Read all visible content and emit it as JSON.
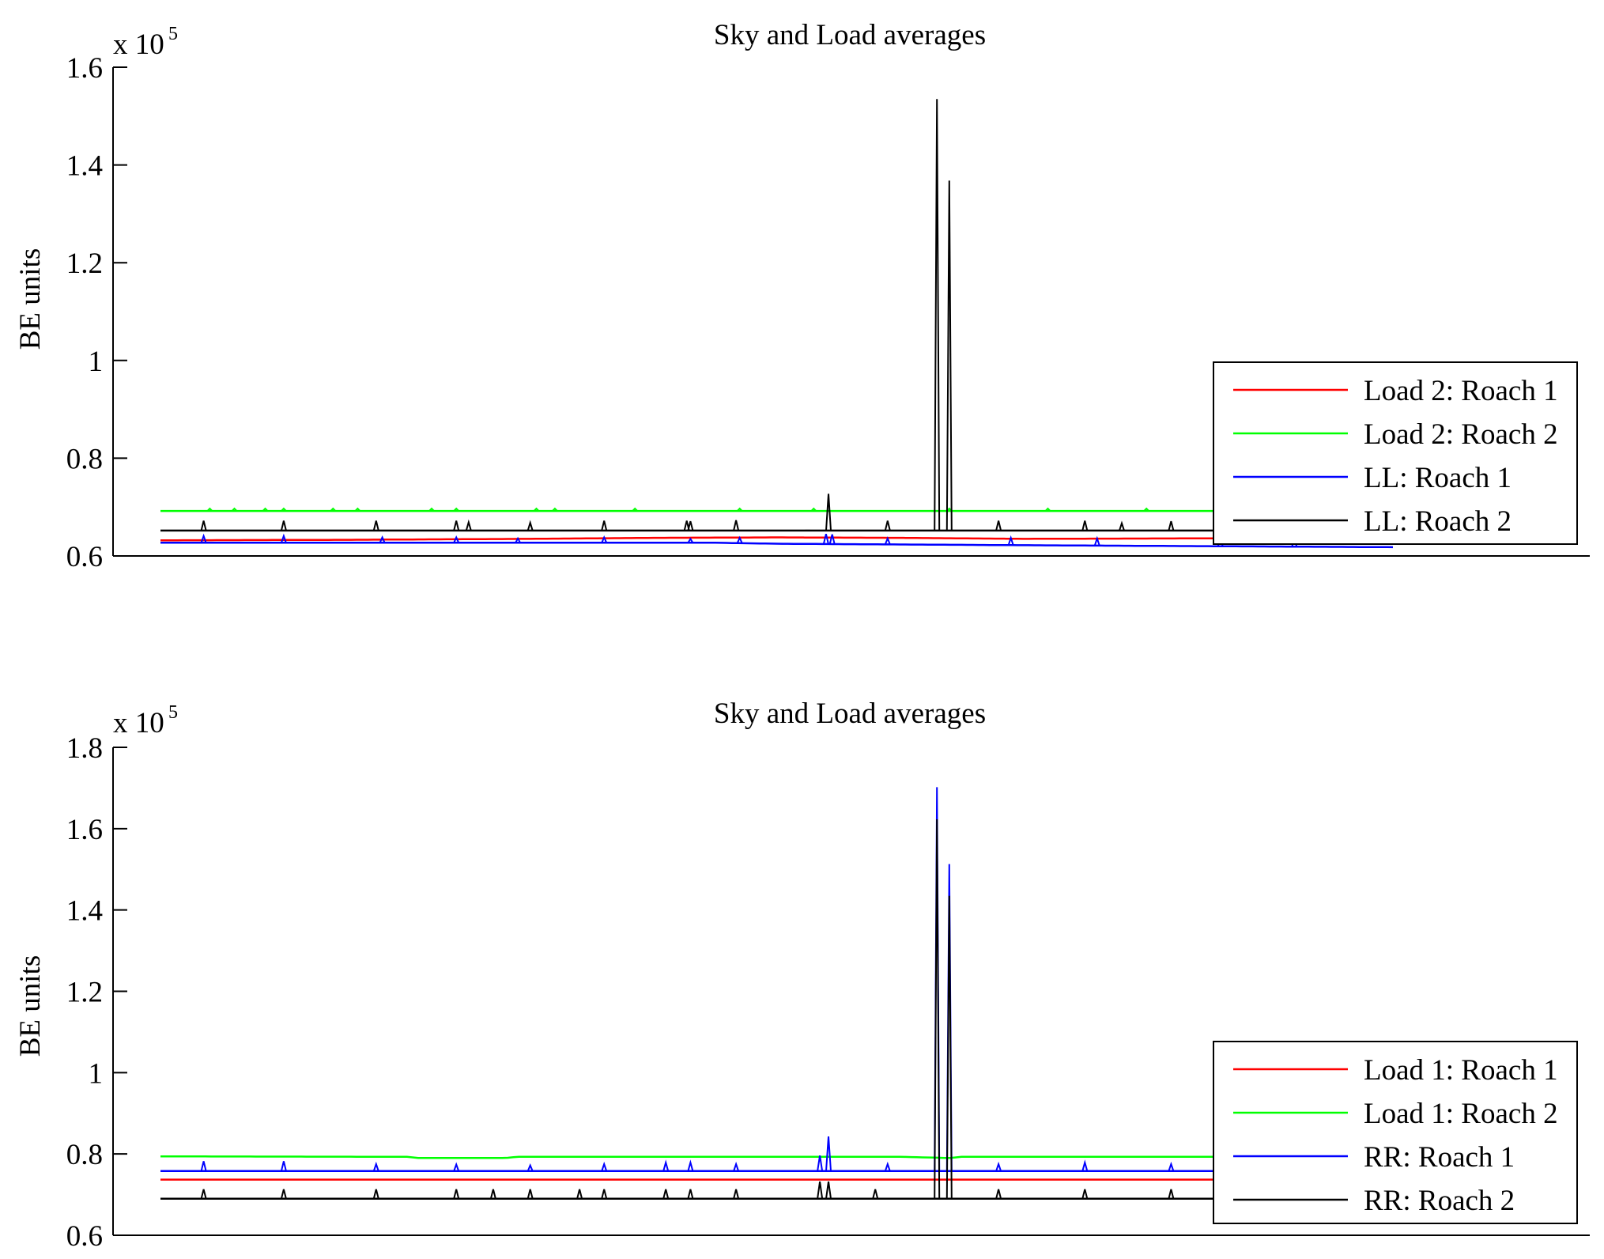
{
  "chart_data": [
    {
      "type": "line",
      "title": "Sky and Load averages",
      "xlabel": "",
      "ylabel": "BE units",
      "yscale_label": "x 10",
      "yscale_exponent": "5",
      "ylim": [
        0.6,
        1.6
      ],
      "yticks": [
        "0.6",
        "0.8",
        "1",
        "1.2",
        "1.4",
        "1.6"
      ],
      "x_range": [
        0,
        1000
      ],
      "legend_position": "right",
      "series": [
        {
          "name": "Load 2: Roach 1",
          "color": "#ff0000",
          "base": 0.635,
          "points": [
            [
              0,
              0.632
            ],
            [
              150,
              0.633
            ],
            [
              300,
              0.635
            ],
            [
              400,
              0.637
            ],
            [
              500,
              0.638
            ],
            [
              600,
              0.637
            ],
            [
              700,
              0.635
            ],
            [
              850,
              0.636
            ],
            [
              1000,
              0.632
            ]
          ],
          "spikes": []
        },
        {
          "name": "Load 2: Roach 2",
          "color": "#00ff00",
          "base": 0.692,
          "points": [
            [
              0,
              0.692
            ],
            [
              1000,
              0.692
            ]
          ],
          "spikes": [
            [
              40,
              0.697
            ],
            [
              60,
              0.697
            ],
            [
              85,
              0.697
            ],
            [
              100,
              0.697
            ],
            [
              140,
              0.697
            ],
            [
              160,
              0.697
            ],
            [
              220,
              0.697
            ],
            [
              240,
              0.697
            ],
            [
              305,
              0.697
            ],
            [
              320,
              0.697
            ],
            [
              385,
              0.697
            ],
            [
              470,
              0.697
            ],
            [
              530,
              0.697
            ],
            [
              640,
              0.697
            ],
            [
              720,
              0.697
            ],
            [
              800,
              0.697
            ],
            [
              900,
              0.697
            ],
            [
              960,
              0.697
            ]
          ]
        },
        {
          "name": "LL: Roach 1",
          "color": "#0000ff",
          "base": 0.627,
          "points": [
            [
              0,
              0.627
            ],
            [
              450,
              0.627
            ],
            [
              500,
              0.625
            ],
            [
              700,
              0.622
            ],
            [
              1000,
              0.618
            ]
          ],
          "spikes": [
            [
              35,
              0.641
            ],
            [
              100,
              0.641
            ],
            [
              180,
              0.638
            ],
            [
              240,
              0.638
            ],
            [
              290,
              0.636
            ],
            [
              360,
              0.638
            ],
            [
              430,
              0.635
            ],
            [
              470,
              0.637
            ],
            [
              540,
              0.645
            ],
            [
              545,
              0.644
            ],
            [
              590,
              0.636
            ],
            [
              690,
              0.637
            ],
            [
              760,
              0.636
            ],
            [
              860,
              0.637
            ],
            [
              920,
              0.635
            ]
          ]
        },
        {
          "name": "LL: Roach 2",
          "color": "#000000",
          "base": 0.652,
          "points": [
            [
              0,
              0.652
            ],
            [
              1000,
              0.652
            ]
          ],
          "spikes": [
            [
              35,
              0.672
            ],
            [
              100,
              0.672
            ],
            [
              175,
              0.672
            ],
            [
              240,
              0.672
            ],
            [
              250,
              0.669
            ],
            [
              300,
              0.668
            ],
            [
              360,
              0.672
            ],
            [
              427,
              0.672
            ],
            [
              430,
              0.671
            ],
            [
              467,
              0.673
            ],
            [
              542,
              0.727
            ],
            [
              525,
              0.652
            ],
            [
              590,
              0.672
            ],
            [
              630,
              1.535
            ],
            [
              640,
              1.368
            ],
            [
              680,
              0.672
            ],
            [
              750,
              0.672
            ],
            [
              780,
              0.667
            ],
            [
              820,
              0.671
            ],
            [
              870,
              0.667
            ],
            [
              925,
              0.673
            ]
          ]
        }
      ]
    },
    {
      "type": "line",
      "title": "Sky and Load averages",
      "xlabel": "",
      "ylabel": "BE units",
      "yscale_label": "x 10",
      "yscale_exponent": "5",
      "ylim": [
        0.6,
        1.8
      ],
      "yticks": [
        "0.6",
        "0.8",
        "1",
        "1.2",
        "1.4",
        "1.6",
        "1.8"
      ],
      "x_range": [
        0,
        1000
      ],
      "legend_position": "right",
      "series": [
        {
          "name": "Load 1: Roach 1",
          "color": "#ff0000",
          "base": 0.737,
          "points": [
            [
              0,
              0.737
            ],
            [
              1000,
              0.737
            ]
          ],
          "spikes": []
        },
        {
          "name": "Load 1: Roach 2",
          "color": "#00ff00",
          "base": 0.792,
          "points": [
            [
              0,
              0.794
            ],
            [
              200,
              0.793
            ],
            [
              210,
              0.79
            ],
            [
              280,
              0.79
            ],
            [
              290,
              0.793
            ],
            [
              600,
              0.793
            ],
            [
              640,
              0.79
            ],
            [
              650,
              0.793
            ],
            [
              1000,
              0.793
            ]
          ],
          "spikes": []
        },
        {
          "name": "RR: Roach 1",
          "color": "#0000ff",
          "base": 0.758,
          "points": [
            [
              0,
              0.758
            ],
            [
              1000,
              0.758
            ]
          ],
          "spikes": [
            [
              35,
              0.782
            ],
            [
              100,
              0.782
            ],
            [
              175,
              0.775
            ],
            [
              240,
              0.774
            ],
            [
              300,
              0.772
            ],
            [
              360,
              0.775
            ],
            [
              410,
              0.779
            ],
            [
              430,
              0.779
            ],
            [
              467,
              0.775
            ],
            [
              535,
              0.796
            ],
            [
              542,
              0.843
            ],
            [
              590,
              0.775
            ],
            [
              630,
              1.702
            ],
            [
              640,
              1.513
            ],
            [
              680,
              0.775
            ],
            [
              750,
              0.779
            ],
            [
              820,
              0.775
            ],
            [
              870,
              0.775
            ],
            [
              925,
              0.775
            ]
          ]
        },
        {
          "name": "RR: Roach 2",
          "color": "#000000",
          "base": 0.69,
          "points": [
            [
              0,
              0.69
            ],
            [
              1000,
              0.69
            ]
          ],
          "spikes": [
            [
              35,
              0.713
            ],
            [
              100,
              0.713
            ],
            [
              175,
              0.713
            ],
            [
              240,
              0.713
            ],
            [
              270,
              0.713
            ],
            [
              300,
              0.713
            ],
            [
              340,
              0.713
            ],
            [
              360,
              0.713
            ],
            [
              410,
              0.713
            ],
            [
              430,
              0.713
            ],
            [
              467,
              0.713
            ],
            [
              535,
              0.732
            ],
            [
              542,
              0.732
            ],
            [
              580,
              0.713
            ],
            [
              630,
              1.623
            ],
            [
              640,
              1.435
            ],
            [
              680,
              0.713
            ],
            [
              750,
              0.713
            ],
            [
              820,
              0.713
            ],
            [
              870,
              0.713
            ],
            [
              925,
              0.713
            ]
          ]
        }
      ]
    }
  ]
}
